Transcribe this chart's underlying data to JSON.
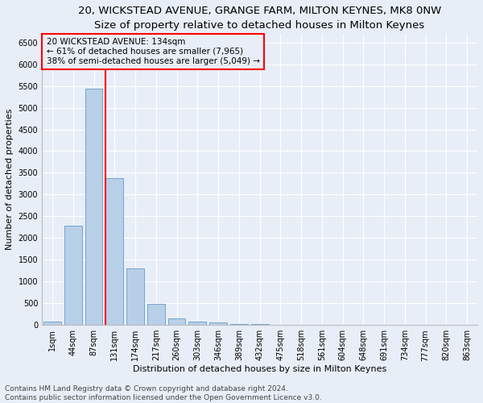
{
  "title": "20, WICKSTEAD AVENUE, GRANGE FARM, MILTON KEYNES, MK8 0NW",
  "subtitle": "Size of property relative to detached houses in Milton Keynes",
  "xlabel": "Distribution of detached houses by size in Milton Keynes",
  "ylabel": "Number of detached properties",
  "footnote1": "Contains HM Land Registry data © Crown copyright and database right 2024.",
  "footnote2": "Contains public sector information licensed under the Open Government Licence v3.0.",
  "bar_labels": [
    "1sqm",
    "44sqm",
    "87sqm",
    "131sqm",
    "174sqm",
    "217sqm",
    "260sqm",
    "303sqm",
    "346sqm",
    "389sqm",
    "432sqm",
    "475sqm",
    "518sqm",
    "561sqm",
    "604sqm",
    "648sqm",
    "691sqm",
    "734sqm",
    "777sqm",
    "820sqm",
    "863sqm"
  ],
  "bar_values": [
    75,
    2275,
    5430,
    3380,
    1310,
    480,
    160,
    80,
    55,
    30,
    15,
    10,
    5,
    3,
    2,
    1,
    1,
    1,
    1,
    0,
    0
  ],
  "bar_color": "#b8cfe8",
  "bar_edge_color": "#6699cc",
  "property_label": "20 WICKSTEAD AVENUE: 134sqm",
  "annotation_line1": "← 61% of detached houses are smaller (7,965)",
  "annotation_line2": "38% of semi-detached houses are larger (5,049) →",
  "red_line_x": 2.55,
  "ylim": [
    0,
    6700
  ],
  "yticks": [
    0,
    500,
    1000,
    1500,
    2000,
    2500,
    3000,
    3500,
    4000,
    4500,
    5000,
    5500,
    6000,
    6500
  ],
  "bg_color": "#e8eef8",
  "grid_color": "#ffffff",
  "title_fontsize": 9.5,
  "subtitle_fontsize": 8.5,
  "axis_label_fontsize": 8,
  "tick_fontsize": 7,
  "annotation_fontsize": 7.5,
  "footnote_fontsize": 6.5
}
